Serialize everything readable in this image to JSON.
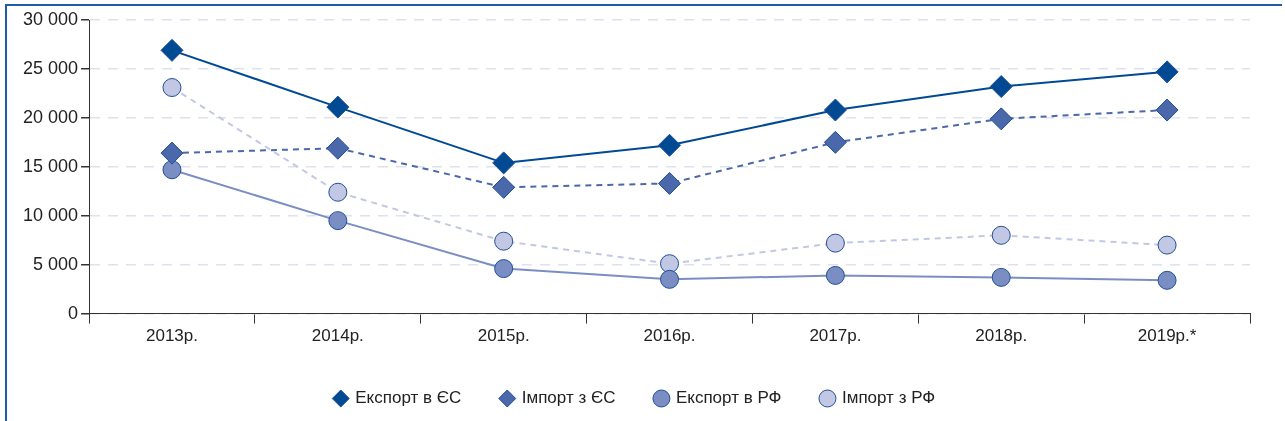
{
  "chart_data": {
    "type": "line",
    "categories": [
      "2013р.",
      "2014р.",
      "2015р.",
      "2016р.",
      "2017р.",
      "2018р.",
      "2019р.*"
    ],
    "ylim": [
      0,
      30000
    ],
    "yticks": [
      {
        "value": 0,
        "label": "0"
      },
      {
        "value": 5000,
        "label": "5 000"
      },
      {
        "value": 10000,
        "label": "10 000"
      },
      {
        "value": 15000,
        "label": "15 000"
      },
      {
        "value": 20000,
        "label": "20 000"
      },
      {
        "value": 25000,
        "label": "25 000"
      },
      {
        "value": 30000,
        "label": "30 000"
      }
    ],
    "grid": "y",
    "legend": "bottom",
    "series": [
      {
        "name": "Експорт в ЄС",
        "color": "#004a94",
        "marker": "diamond",
        "line_style": "solid",
        "values": [
          26900,
          21100,
          15400,
          17200,
          20800,
          23200,
          24700
        ]
      },
      {
        "name": "Імпорт з ЄС",
        "color": "#4a68aa",
        "marker": "diamond",
        "line_style": "dashed",
        "values": [
          16400,
          16900,
          12900,
          13300,
          17500,
          19900,
          20800
        ]
      },
      {
        "name": "Експорт в РФ",
        "color": "#7b8ec4",
        "marker": "circle",
        "line_style": "solid",
        "values": [
          14700,
          9500,
          4600,
          3500,
          3900,
          3700,
          3400
        ]
      },
      {
        "name": "Імпорт з РФ",
        "color": "#c2c8e4",
        "marker": "circle",
        "line_style": "dashed",
        "values": [
          23100,
          12400,
          7400,
          5100,
          7200,
          8000,
          7000
        ]
      }
    ]
  }
}
